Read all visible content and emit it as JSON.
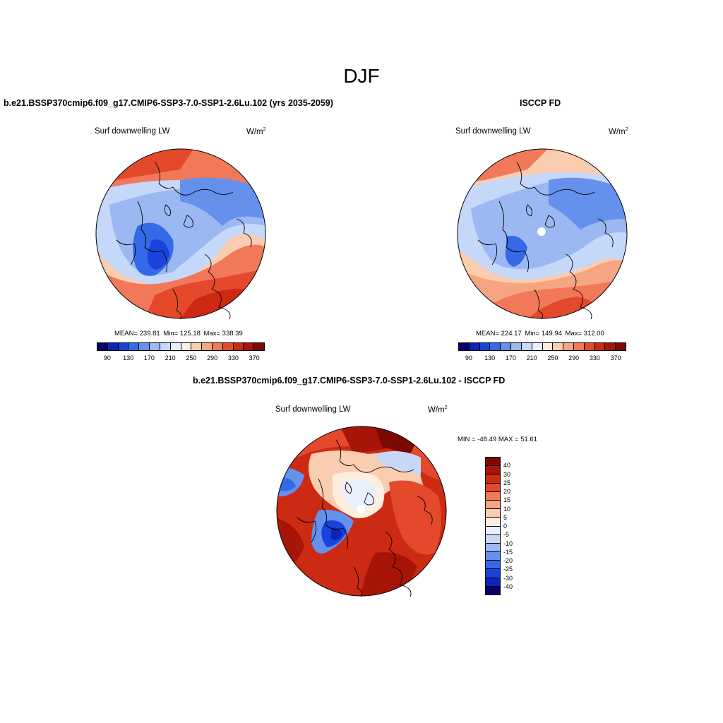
{
  "figure": {
    "title": "DJF"
  },
  "palette_abs": [
    "#08006b",
    "#0c24b8",
    "#1a43dc",
    "#3469e8",
    "#6590ec",
    "#9bb8f2",
    "#c6d8fa",
    "#e8f0fe",
    "#fdeee0",
    "#fbcdb0",
    "#f6a583",
    "#f1795a",
    "#e4492c",
    "#cc2a12",
    "#a61507",
    "#7a0a03"
  ],
  "palette_diff": [
    "#7a0a03",
    "#a61507",
    "#cc2a12",
    "#e4492c",
    "#f1795a",
    "#f6a583",
    "#fbcdb0",
    "#fdeee0",
    "#e8f0fe",
    "#c6d8fa",
    "#9bb8f2",
    "#6590ec",
    "#3469e8",
    "#1a43dc",
    "#0c24b8",
    "#08006b"
  ],
  "panels": {
    "model": {
      "title": "b.e21.BSSP370cmip6.f09_g17.CMIP6-SSP3-7.0-SSP1-2.6Lu.102 (yrs 2035-2059)",
      "variable": "Surf downwelling LW",
      "units": "W/m",
      "units_sup": "2",
      "stats": {
        "mean": "MEAN= 239.81",
        "min": "Min= 125.18",
        "max": "Max= 338.39"
      },
      "colorbar_ticks": [
        "90",
        "130",
        "170",
        "210",
        "250",
        "290",
        "330",
        "370"
      ]
    },
    "obs": {
      "title": "ISCCP FD",
      "variable": "Surf downwelling LW",
      "units": "W/m",
      "units_sup": "2",
      "stats": {
        "mean": "MEAN= 224.17",
        "min": "Min= 149.94",
        "max": "Max= 312.00"
      },
      "colorbar_ticks": [
        "90",
        "130",
        "170",
        "210",
        "250",
        "290",
        "330",
        "370"
      ]
    },
    "diff": {
      "title": "b.e21.BSSP370cmip6.f09_g17.CMIP6-SSP3-7.0-SSP1-2.6Lu.102 - ISCCP FD",
      "variable": "Surf downwelling LW",
      "units": "W/m",
      "units_sup": "2",
      "minmax": "MIN = -48.49  MAX =  51.61",
      "colorbar_ticks": [
        "40",
        "30",
        "25",
        "20",
        "15",
        "10",
        "5",
        "0",
        "-5",
        "-10",
        "-15",
        "-20",
        "-25",
        "-30",
        "-40"
      ]
    }
  }
}
